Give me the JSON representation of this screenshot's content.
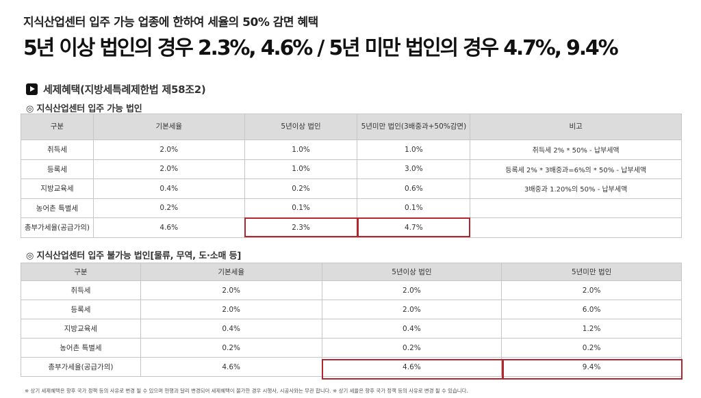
{
  "header": {
    "subtitle": "지식산업센터 입주 가능 업종에 한하여 세율의 50% 감면 혜택",
    "headline": "5년 이상 법인의 경우 2.3%, 4.6% / 5년 미만 법인의 경우 4.7%, 9.4%"
  },
  "section": {
    "title": "세제혜택(지방세특례제한법 제58조2)",
    "icon": "play-icon"
  },
  "table1": {
    "caption": "◎ 지식산업센터 입주 가능 법인",
    "headers": [
      "구분",
      "기본세율",
      "5년이상 법인",
      "5년미만 법인(3배중과+50%감면)",
      "비고"
    ],
    "rows": [
      [
        "취득세",
        "2.0%",
        "1.0%",
        "1.0%",
        "취득세 2% * 50% - 납부세액"
      ],
      [
        "등록세",
        "2.0%",
        "1.0%",
        "3.0%",
        "등록세 2% * 3배중과=6%의 * 50% - 납부세액"
      ],
      [
        "지방교육세",
        "0.4%",
        "0.2%",
        "0.6%",
        "3배중과 1.20%의 50% - 납부세액"
      ],
      [
        "농어촌 특별세",
        "0.2%",
        "0.1%",
        "0.1%",
        ""
      ],
      [
        "총부가세율(공급가의)",
        "4.6%",
        "2.3%",
        "4.7%",
        ""
      ]
    ]
  },
  "table2": {
    "caption": "◎ 지식산업센터 입주 불가능 법인[물류, 무역, 도·소매 등]",
    "headers": [
      "구분",
      "기본세율",
      "5년이상 법인",
      "5년미만 법인"
    ],
    "rows": [
      [
        "취득세",
        "2.0%",
        "2.0%",
        "2.0%"
      ],
      [
        "등록세",
        "2.0%",
        "2.0%",
        "6.0%"
      ],
      [
        "지방교육세",
        "0.4%",
        "0.4%",
        "1.2%"
      ],
      [
        "농어촌 특별세",
        "0.2%",
        "0.2%",
        "0.2%"
      ],
      [
        "총부가세율(공급가의)",
        "4.6%",
        "4.6%",
        "9.4%"
      ]
    ]
  },
  "footnote": "※ 상기 세제혜택은 향후 국가 정책 등의 사유로 변경 될 수 있으며 현행과 달리 변경되어 세제혜택이 불가한 경우 시행사, 시공사와는 무관 합니다. ※ 상기 세율은 향후 국가 정책 등의 사유로 변경 될 수 있습니다.",
  "colors": {
    "highlight": "#b3252c",
    "header_bg": "#dcdcdc",
    "border": "#c6c6c6"
  }
}
